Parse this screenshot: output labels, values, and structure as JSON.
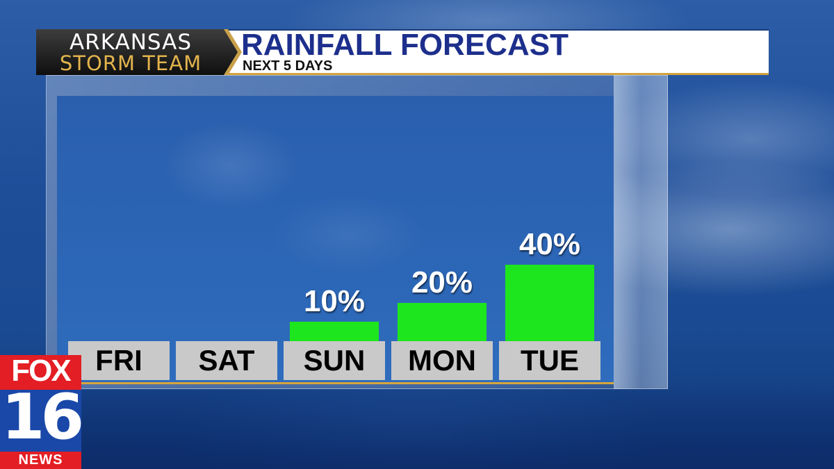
{
  "header": {
    "brand_line1": "ARKANSAS",
    "brand_line2": "STORM TEAM",
    "title": "RAINFALL FORECAST",
    "subtitle": "NEXT 5 DAYS"
  },
  "station_logo": {
    "network": "FOX",
    "channel": "16",
    "news": "NEWS"
  },
  "colors": {
    "bar": "#1ee61e",
    "title": "#1d2f8c",
    "label_box": "#c9c9c9",
    "accent_gold": "#d3a23a",
    "logo_red": "#e31e24"
  },
  "chart_data": {
    "type": "bar",
    "categories": [
      "FRI",
      "SAT",
      "SUN",
      "MON",
      "TUE"
    ],
    "values": [
      0,
      0,
      10,
      20,
      40
    ],
    "value_labels": [
      "",
      "",
      "10%",
      "20%",
      "40%"
    ],
    "title": "RAINFALL FORECAST",
    "subtitle": "NEXT 5 DAYS",
    "xlabel": "",
    "ylabel": "",
    "ylim": [
      0,
      100
    ],
    "grid": false,
    "legend": "none"
  }
}
